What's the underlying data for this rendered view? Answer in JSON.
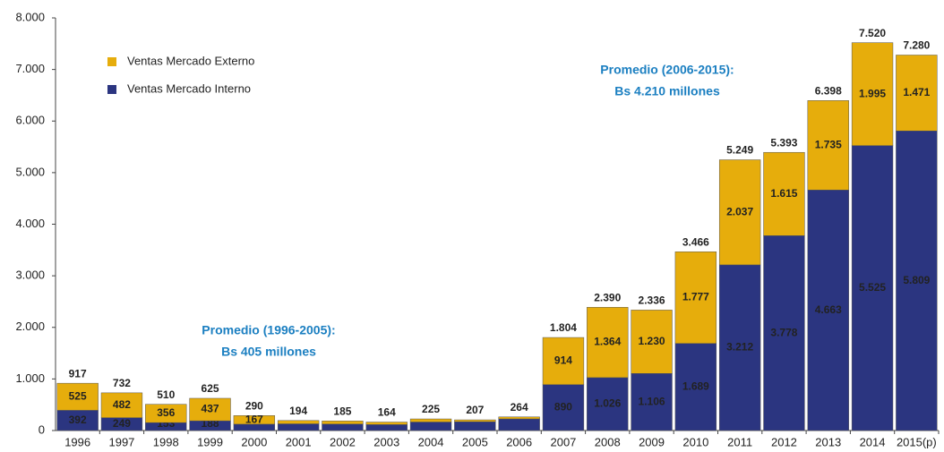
{
  "chart_data": {
    "type": "stacked_bar",
    "categories": [
      "1996",
      "1997",
      "1998",
      "1999",
      "2000",
      "2001",
      "2002",
      "2003",
      "2004",
      "2005",
      "2006",
      "2007",
      "2008",
      "2009",
      "2010",
      "2011",
      "2012",
      "2013",
      "2014",
      "2015(p)"
    ],
    "series": [
      {
        "name": "Ventas Mercado Interno",
        "color": "#2b3580",
        "values": [
          392,
          249,
          153,
          188,
          123,
          130,
          125,
          115,
          165,
          170,
          225,
          890,
          1026,
          1106,
          1689,
          3212,
          3778,
          4663,
          5525,
          5809
        ],
        "value_labels": [
          "392",
          "249",
          "153",
          "188",
          null,
          null,
          null,
          null,
          null,
          null,
          null,
          "890",
          "1.026",
          "1.106",
          "1.689",
          "3.212",
          "3.778",
          "4.663",
          "5.525",
          "5.809"
        ]
      },
      {
        "name": "Ventas Mercado Externo",
        "color": "#e6ad0c",
        "values": [
          525,
          482,
          356,
          437,
          167,
          64,
          60,
          49,
          60,
          37,
          39,
          914,
          1364,
          1230,
          1777,
          2037,
          1615,
          1735,
          1995,
          1471
        ],
        "value_labels": [
          "525",
          "482",
          "356",
          "437",
          "167",
          null,
          null,
          null,
          null,
          null,
          null,
          "914",
          "1.364",
          "1.230",
          "1.777",
          "2.037",
          "1.615",
          "1.735",
          "1.995",
          "1.471"
        ]
      }
    ],
    "totals": {
      "values": [
        917,
        732,
        510,
        625,
        290,
        194,
        185,
        164,
        225,
        207,
        264,
        1804,
        2390,
        2336,
        3466,
        5249,
        5393,
        6398,
        7520,
        7280
      ],
      "value_labels": [
        "917",
        "732",
        "510",
        "625",
        "290",
        "194",
        "185",
        "164",
        "225",
        "207",
        "264",
        "1.804",
        "2.390",
        "2.336",
        "3.466",
        "5.249",
        "5.393",
        "6.398",
        "7.520",
        "7.280"
      ]
    },
    "ylim": [
      0,
      8000
    ],
    "yticks": [
      0,
      {
        "value": 1000,
        "label": "1.000"
      },
      {
        "value": 2000,
        "label": "2.000"
      },
      {
        "value": 3000,
        "label": "3.000"
      },
      {
        "value": 4000,
        "label": "4.000"
      },
      {
        "value": 5000,
        "label": "5.000"
      },
      {
        "value": 6000,
        "label": "6.000"
      },
      {
        "value": 7000,
        "label": "7.000"
      },
      {
        "value": 8000,
        "label": "8.000"
      }
    ],
    "legend": "top-left",
    "annotations": [
      {
        "lines": [
          "Promedio (1996-2005):",
          "Bs 405 millones"
        ]
      },
      {
        "lines": [
          "Promedio (2006-2015):",
          "Bs 4.210 millones"
        ]
      }
    ]
  }
}
